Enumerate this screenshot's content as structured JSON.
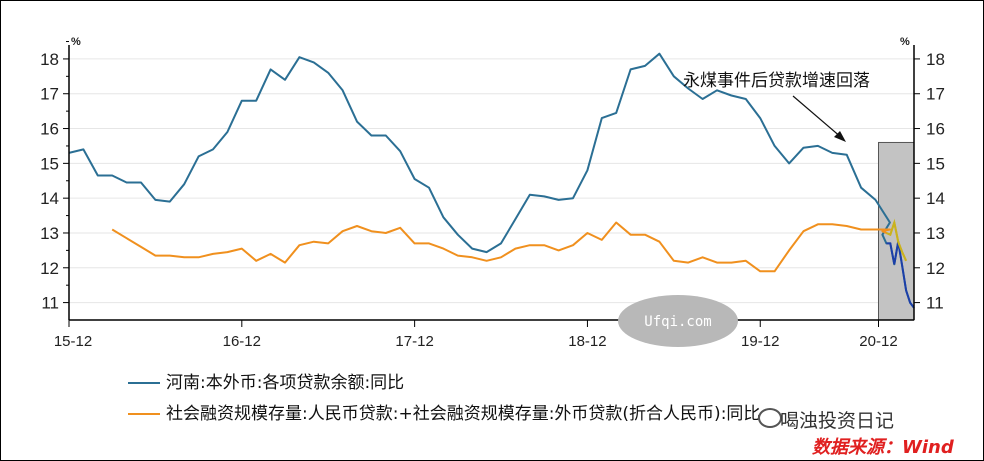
{
  "chart_data": {
    "type": "line",
    "unit_left": "%",
    "unit_right": "%",
    "ylim": [
      10.5,
      18.4
    ],
    "y_ticks": [
      11,
      12,
      13,
      14,
      15,
      16,
      17,
      18
    ],
    "x_tick_labels": [
      "15-12",
      "16-12",
      "17-12",
      "18-12",
      "19-12",
      "20-12"
    ],
    "x_range_months_from_2015_12": [
      0,
      59.5
    ],
    "series": [
      {
        "name": "河南:本外币:各项贷款余额:同比",
        "color": "#2b6f94",
        "points": [
          [
            0,
            15.3
          ],
          [
            1,
            15.4
          ],
          [
            2,
            14.65
          ],
          [
            3,
            14.65
          ],
          [
            4,
            14.45
          ],
          [
            5,
            14.45
          ],
          [
            6,
            13.95
          ],
          [
            7,
            13.9
          ],
          [
            8,
            14.4
          ],
          [
            9,
            15.2
          ],
          [
            10,
            15.4
          ],
          [
            11,
            15.9
          ],
          [
            12,
            16.8
          ],
          [
            13,
            16.8
          ],
          [
            14,
            17.7
          ],
          [
            15,
            17.4
          ],
          [
            16,
            18.05
          ],
          [
            17,
            17.9
          ],
          [
            18,
            17.6
          ],
          [
            19,
            17.1
          ],
          [
            20,
            16.2
          ],
          [
            21,
            15.8
          ],
          [
            22,
            15.8
          ],
          [
            23,
            15.35
          ],
          [
            24,
            14.55
          ],
          [
            25,
            14.3
          ],
          [
            26,
            13.45
          ],
          [
            27,
            12.95
          ],
          [
            28,
            12.55
          ],
          [
            29,
            12.45
          ],
          [
            30,
            12.7
          ],
          [
            31,
            13.4
          ],
          [
            32,
            14.1
          ],
          [
            33,
            14.05
          ],
          [
            34,
            13.95
          ],
          [
            35,
            14.0
          ],
          [
            36,
            14.8
          ],
          [
            37,
            16.3
          ],
          [
            38,
            16.45
          ],
          [
            39,
            17.7
          ],
          [
            40,
            17.8
          ],
          [
            41,
            18.15
          ],
          [
            42,
            17.5
          ],
          [
            43,
            17.15
          ],
          [
            44,
            16.85
          ],
          [
            45,
            17.1
          ],
          [
            46,
            16.95
          ],
          [
            47,
            16.85
          ],
          [
            48,
            16.3
          ],
          [
            49,
            15.5
          ],
          [
            50,
            15.0
          ],
          [
            51,
            15.45
          ],
          [
            52,
            15.5
          ],
          [
            53,
            15.3
          ],
          [
            54,
            15.25
          ],
          [
            55,
            14.3
          ],
          [
            56,
            13.95
          ],
          [
            57,
            13.3
          ],
          [
            58,
            12.95
          ],
          [
            59,
            12.7
          ],
          [
            60,
            12.7
          ],
          [
            61,
            12.1
          ],
          [
            62,
            12.75
          ],
          [
            63,
            12.05
          ],
          [
            64,
            11.35
          ],
          [
            65,
            11.0
          ],
          [
            66,
            10.85
          ]
        ]
      },
      {
        "name": "社会融资规模存量:人民币贷款:+社会融资规模存量:外币贷款(折合人民币):同比",
        "color": "#f0901e",
        "points": [
          [
            3,
            13.1
          ],
          [
            4,
            12.85
          ],
          [
            5,
            12.6
          ],
          [
            6,
            12.35
          ],
          [
            7,
            12.35
          ],
          [
            8,
            12.3
          ],
          [
            9,
            12.3
          ],
          [
            10,
            12.4
          ],
          [
            11,
            12.45
          ],
          [
            12,
            12.55
          ],
          [
            13,
            12.2
          ],
          [
            14,
            12.4
          ],
          [
            15,
            12.15
          ],
          [
            16,
            12.65
          ],
          [
            17,
            12.75
          ],
          [
            18,
            12.7
          ],
          [
            19,
            13.05
          ],
          [
            20,
            13.2
          ],
          [
            21,
            13.05
          ],
          [
            22,
            13.0
          ],
          [
            23,
            13.15
          ],
          [
            24,
            12.7
          ],
          [
            25,
            12.7
          ],
          [
            26,
            12.55
          ],
          [
            27,
            12.35
          ],
          [
            28,
            12.3
          ],
          [
            29,
            12.2
          ],
          [
            30,
            12.3
          ],
          [
            31,
            12.55
          ],
          [
            32,
            12.65
          ],
          [
            33,
            12.65
          ],
          [
            34,
            12.5
          ],
          [
            35,
            12.65
          ],
          [
            36,
            13.0
          ],
          [
            37,
            12.8
          ],
          [
            38,
            13.3
          ],
          [
            39,
            12.95
          ],
          [
            40,
            12.95
          ],
          [
            41,
            12.75
          ],
          [
            42,
            12.2
          ],
          [
            43,
            12.15
          ],
          [
            44,
            12.3
          ],
          [
            45,
            12.15
          ],
          [
            46,
            12.15
          ],
          [
            47,
            12.2
          ],
          [
            48,
            11.9
          ],
          [
            49,
            11.9
          ],
          [
            50,
            12.5
          ],
          [
            51,
            13.05
          ],
          [
            52,
            13.25
          ],
          [
            53,
            13.25
          ],
          [
            54,
            13.2
          ],
          [
            55,
            13.1
          ],
          [
            56,
            13.1
          ],
          [
            57,
            13.1
          ],
          [
            58,
            13.05
          ],
          [
            59,
            13.0
          ],
          [
            60,
            12.95
          ],
          [
            61,
            13.3
          ],
          [
            62,
            12.75
          ],
          [
            63,
            12.45
          ],
          [
            64,
            12.2
          ]
        ]
      }
    ],
    "highlight_box_x_range": [
      57.8,
      59.5
    ],
    "annotation": "永煤事件后贷款增速回落",
    "legend_placement": "bottom"
  },
  "watermark_overlay": "Ufqi.com",
  "watermark_brand": "喝浊投资日记",
  "source_note": "数据来源：Wind",
  "colors": {
    "axis": "#000000",
    "grid": "#e6e6e6",
    "highlight_fill": "#c3c3c3",
    "watermark_oval": "#b8b8b8",
    "source_red": "#e02020"
  }
}
